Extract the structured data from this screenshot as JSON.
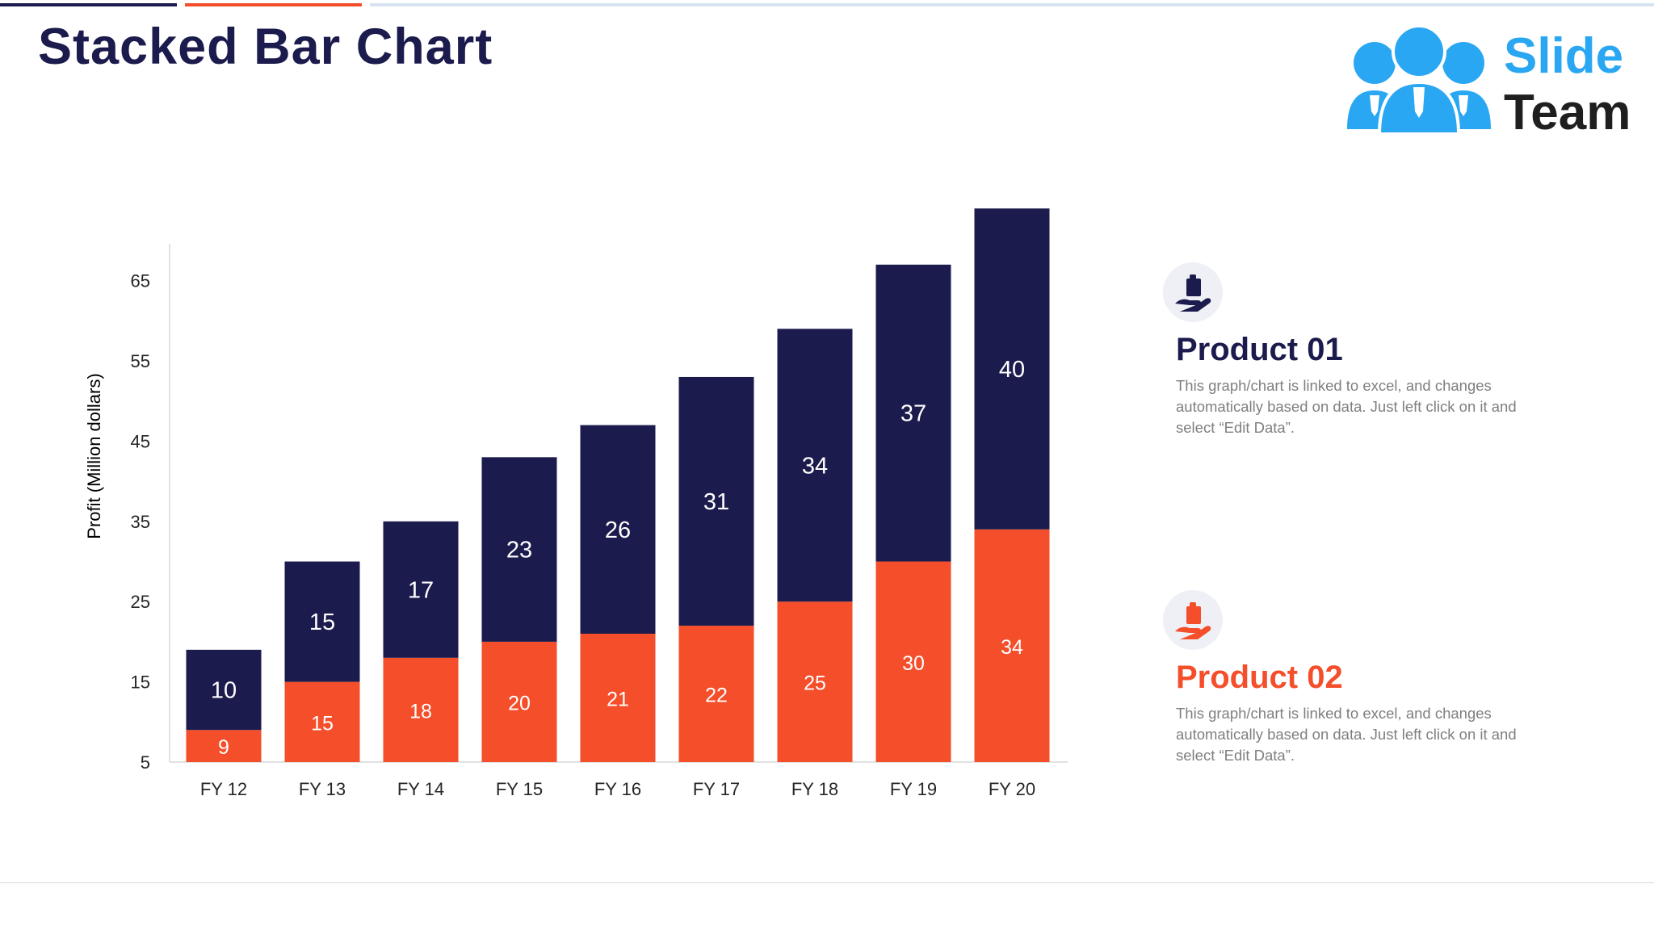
{
  "slide": {
    "title": "Stacked Bar Chart"
  },
  "logo": {
    "word1": "Slide",
    "word2": "Team"
  },
  "products": [
    {
      "name": "Product 01",
      "description": "This graph/chart is linked to excel, and changes automatically based on data. Just left click on it and select “Edit Data”."
    },
    {
      "name": "Product 02",
      "description": "This graph/chart is linked to excel, and changes automatically based on data. Just left click on it and select “Edit Data”."
    }
  ],
  "colors": {
    "series1": "#f44e2b",
    "series2": "#1c1b4d",
    "accent_blue": "#2aa7f2"
  },
  "icons": [
    "people-logo-icon",
    "hand-clipboard-icon"
  ],
  "chart_data": {
    "type": "bar",
    "stacked": true,
    "title": "",
    "xlabel": "",
    "ylabel": "Profit  (Million dollars)",
    "categories": [
      "FY 12",
      "FY 13",
      "FY 14",
      "FY 15",
      "FY 16",
      "FY 17",
      "FY 18",
      "FY 19",
      "FY 20"
    ],
    "series": [
      {
        "values": [
          9,
          15,
          18,
          20,
          21,
          22,
          25,
          30,
          34
        ]
      },
      {
        "values": [
          10,
          15,
          17,
          23,
          26,
          31,
          34,
          37,
          40
        ]
      }
    ],
    "ylim": [
      5,
      70
    ],
    "yticks": [
      5,
      15,
      25,
      35,
      45,
      55,
      65
    ],
    "grid": false,
    "legend": "none"
  }
}
